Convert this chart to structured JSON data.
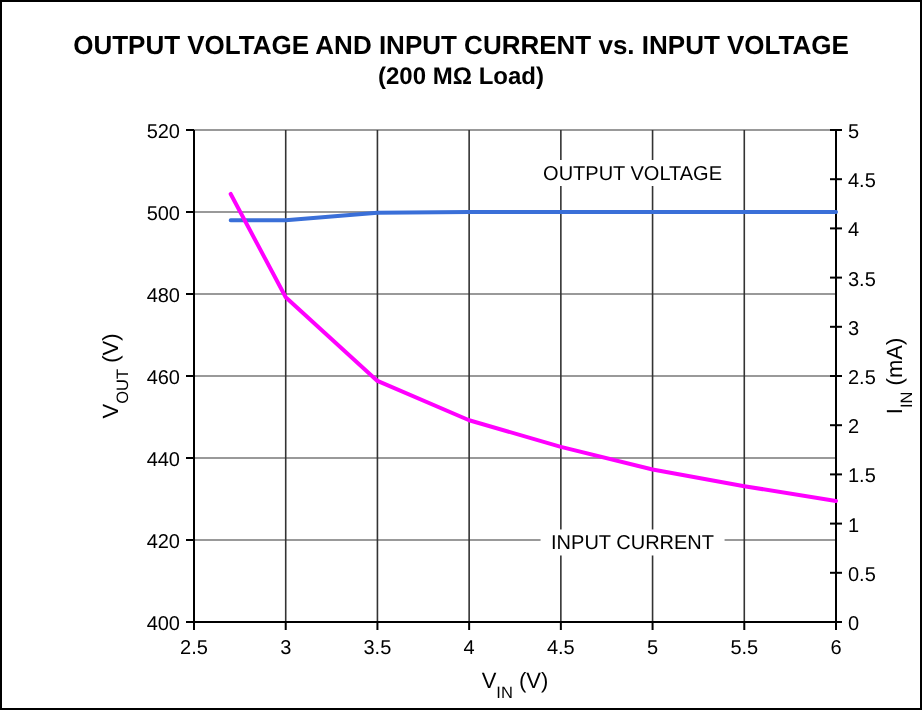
{
  "chart_data": {
    "type": "line",
    "title": "OUTPUT VOLTAGE AND INPUT CURRENT vs. INPUT VOLTAGE",
    "subtitle": "(200 MΩ Load)",
    "xlabel": "V$_{IN}$ (V)",
    "ylabel": "V$_{OUT}$ (V)",
    "y2label": "I$_{IN}$ (mA)",
    "x": [
      2.7,
      3,
      3.5,
      4,
      4.5,
      5,
      5.5,
      6
    ],
    "series": [
      {
        "name": "OUTPUT VOLTAGE",
        "color": "#3a6fd8",
        "values": [
          498,
          498,
          499.8,
          500,
          500,
          500,
          500,
          500
        ]
      },
      {
        "name": "INPUT CURRENT",
        "color": "#ff00ff",
        "axis": "y2",
        "values": [
          4.35,
          3.3,
          2.45,
          2.05,
          1.78,
          1.55,
          1.38,
          1.23
        ]
      }
    ],
    "xlim": [
      2.5,
      6
    ],
    "xticks": [
      2.5,
      3,
      3.5,
      4,
      4.5,
      5,
      5.5,
      6
    ],
    "ylim": [
      400,
      520
    ],
    "yticks": [
      400,
      420,
      440,
      460,
      480,
      500,
      520
    ],
    "y2lim": [
      0,
      5
    ],
    "y2ticks": [
      0,
      0.5,
      1,
      1.5,
      2,
      2.5,
      3,
      3.5,
      4,
      4.5,
      5
    ],
    "grid": true,
    "marker": "none",
    "line_style": "solid"
  }
}
